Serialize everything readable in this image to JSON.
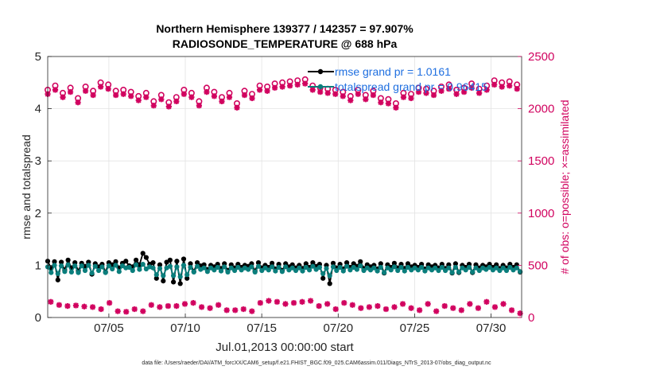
{
  "footer": "data file: /Users/raeder/DAI/ATM_forcXX/CAM6_setup/f.e21.FHIST_BGC.f09_025.CAM6assim.011/Diags_NTrS_2013-07/obs_diag_output.nc",
  "chart_data": {
    "type": "line",
    "title_line1": "Northern Hemisphere 139377 / 142357 = 97.907%",
    "title_line2": "RADIOSONDE_TEMPERATURE @ 688 hPa",
    "xlabel": "Jul.01,2013 00:00:00 start",
    "ylabel_left": "rmse and totalspread",
    "ylabel_right": "# of obs: o=possible; ×=assimilated",
    "ylim_left": [
      0,
      5
    ],
    "ylim_right": [
      0,
      2500
    ],
    "xlim": [
      1.0,
      32.0
    ],
    "x_ticks": [
      5,
      10,
      15,
      20,
      25,
      30
    ],
    "x_tick_labels": [
      "07/05",
      "07/10",
      "07/15",
      "07/20",
      "07/25",
      "07/30"
    ],
    "y_ticks_left": [
      0,
      1,
      2,
      3,
      4,
      5
    ],
    "y_ticks_left_labels": [
      "0",
      "1",
      "2",
      "3",
      "4",
      "5"
    ],
    "y_ticks_right": [
      0,
      500,
      1000,
      1500,
      2000,
      2500
    ],
    "y_ticks_right_labels": [
      "0",
      "500",
      "1000",
      "1500",
      "2000",
      "2500"
    ],
    "grid": true,
    "legend_position": "top-center",
    "legend": [
      "rmse grand pr = 1.0161",
      "totalspread grand pr = 0.96415"
    ],
    "colors": {
      "rmse": "#000000",
      "totalspread": "#0a7e7c",
      "obs": "#d1035f"
    },
    "series": [
      {
        "name": "rmse",
        "axis": "left",
        "values": [
          1.08,
          0.94,
          1.07,
          0.72,
          1.06,
          0.91,
          1.1,
          0.95,
          1.05,
          0.89,
          1.04,
          0.98,
          1.06,
          0.83,
          1.03,
          0.97,
          1.02,
          0.87,
          1.05,
          1.01,
          1.07,
          0.95,
          1.04,
          1.08,
          0.99,
          0.97,
          1.1,
          1.01,
          1.23,
          1.15,
          1.02,
          1.05,
          0.75,
          1.01,
          0.7,
          1.06,
          1.1,
          0.68,
          1.08,
          0.65,
          1.12,
          0.75,
          1.03,
          0.88,
          1.05,
          0.99,
          1.01,
          0.92,
          1.0,
          0.97,
          1.02,
          0.94,
          1.03,
          0.9,
          1.01,
          0.95,
          1.02,
          0.96,
          1.0,
          0.98,
          1.03,
          0.89,
          1.05,
          0.95,
          1.0,
          0.96,
          1.04,
          0.93,
          1.02,
          0.9,
          1.03,
          0.97,
          1.01,
          0.95,
          1.0,
          0.94,
          1.03,
          0.96,
          1.05,
          0.98,
          1.02,
          0.75,
          1.0,
          0.65,
          1.04,
          0.95,
          1.02,
          0.93,
          1.05,
          0.96,
          1.03,
          0.98,
          1.07,
          0.94,
          1.01,
          0.97,
          1.0,
          0.93,
          1.03,
          0.85,
          1.01,
          0.96,
          1.04,
          0.95,
          1.02,
          0.94,
          1.03,
          0.97,
          1.0,
          0.96,
          1.02,
          0.93,
          1.01,
          0.97,
          1.0,
          0.95,
          1.02,
          0.94,
          1.01,
          0.85,
          1.03,
          0.86,
          1.0,
          0.96,
          1.02,
          0.86,
          1.01,
          0.95,
          1.0,
          0.97,
          1.02,
          0.96,
          1.01,
          0.94,
          1.0,
          0.95,
          1.02,
          0.96,
          1.01,
          0.87
        ]
      },
      {
        "name": "totalspread",
        "axis": "left",
        "values": [
          0.97,
          0.86,
          1.0,
          0.84,
          0.99,
          0.88,
          1.01,
          0.87,
          0.99,
          0.86,
          0.99,
          0.9,
          1.0,
          0.85,
          0.98,
          0.9,
          0.97,
          0.86,
          0.99,
          0.93,
          1.0,
          0.88,
          0.99,
          0.95,
          0.96,
          0.9,
          1.01,
          0.92,
          1.02,
          0.93,
          0.97,
          0.95,
          0.82,
          0.94,
          0.8,
          0.95,
          0.98,
          0.8,
          0.97,
          0.78,
          1.0,
          0.82,
          0.96,
          0.87,
          0.98,
          0.92,
          0.95,
          0.88,
          0.95,
          0.91,
          0.96,
          0.89,
          0.97,
          0.87,
          0.95,
          0.9,
          0.96,
          0.91,
          0.95,
          0.92,
          0.97,
          0.87,
          0.98,
          0.9,
          0.95,
          0.91,
          0.97,
          0.89,
          0.96,
          0.88,
          0.97,
          0.91,
          0.95,
          0.9,
          0.95,
          0.89,
          0.96,
          0.91,
          0.98,
          0.92,
          0.96,
          0.84,
          0.94,
          0.8,
          0.97,
          0.9,
          0.96,
          0.89,
          0.98,
          0.91,
          0.96,
          0.92,
          0.99,
          0.9,
          0.95,
          0.91,
          0.95,
          0.89,
          0.96,
          0.86,
          0.95,
          0.91,
          0.97,
          0.9,
          0.96,
          0.89,
          0.96,
          0.91,
          0.95,
          0.91,
          0.96,
          0.89,
          0.95,
          0.91,
          0.95,
          0.9,
          0.96,
          0.9,
          0.95,
          0.86,
          0.96,
          0.87,
          0.95,
          0.91,
          0.96,
          0.87,
          0.95,
          0.9,
          0.95,
          0.92,
          0.96,
          0.91,
          0.95,
          0.9,
          0.95,
          0.9,
          0.96,
          0.91,
          0.95,
          0.88
        ]
      },
      {
        "name": "obs_possible",
        "axis": "right",
        "marker": "o",
        "values": [
          2180,
          2220,
          2150,
          2200,
          2100,
          2210,
          2170,
          2250,
          2230,
          2170,
          2180,
          2160,
          2120,
          2150,
          2070,
          2130,
          2060,
          2110,
          2180,
          2150,
          2070,
          2200,
          2160,
          2110,
          2150,
          2050,
          2170,
          2140,
          2220,
          2210,
          2240,
          2250,
          2260,
          2270,
          2280,
          2220,
          2200,
          2190,
          2180,
          2160,
          2120,
          2180,
          2130,
          2170,
          2100,
          2090,
          2050,
          2150,
          2140,
          2200,
          2190,
          2170,
          2210,
          2230,
          2180,
          2200,
          2240,
          2190,
          2220,
          2270,
          2250,
          2260,
          2230
        ]
      },
      {
        "name": "obs_assimilated",
        "axis": "right",
        "marker": "x",
        "values": [
          2140,
          2180,
          2110,
          2160,
          2060,
          2170,
          2130,
          2210,
          2190,
          2130,
          2140,
          2120,
          2080,
          2110,
          2030,
          2090,
          2020,
          2070,
          2140,
          2110,
          2030,
          2160,
          2120,
          2070,
          2110,
          2010,
          2130,
          2100,
          2180,
          2170,
          2200,
          2210,
          2220,
          2230,
          2240,
          2180,
          2160,
          2150,
          2140,
          2120,
          2080,
          2140,
          2090,
          2130,
          2060,
          2050,
          2010,
          2110,
          2100,
          2160,
          2150,
          2130,
          2170,
          2190,
          2140,
          2160,
          2200,
          2150,
          2180,
          2230,
          2210,
          2220,
          2190
        ]
      },
      {
        "name": "obs_low",
        "axis": "right",
        "marker": "x",
        "values": [
          150,
          120,
          110,
          115,
          105,
          100,
          80,
          140,
          60,
          55,
          80,
          60,
          120,
          100,
          110,
          110,
          130,
          140,
          100,
          90,
          120,
          70,
          70,
          80,
          60,
          140,
          160,
          150,
          130,
          140,
          150,
          160,
          110,
          130,
          80,
          140,
          120,
          90,
          100,
          110,
          80,
          100,
          130,
          90,
          70,
          130,
          60,
          110,
          90,
          70,
          130,
          90,
          150,
          100,
          130,
          70,
          40
        ]
      }
    ]
  }
}
